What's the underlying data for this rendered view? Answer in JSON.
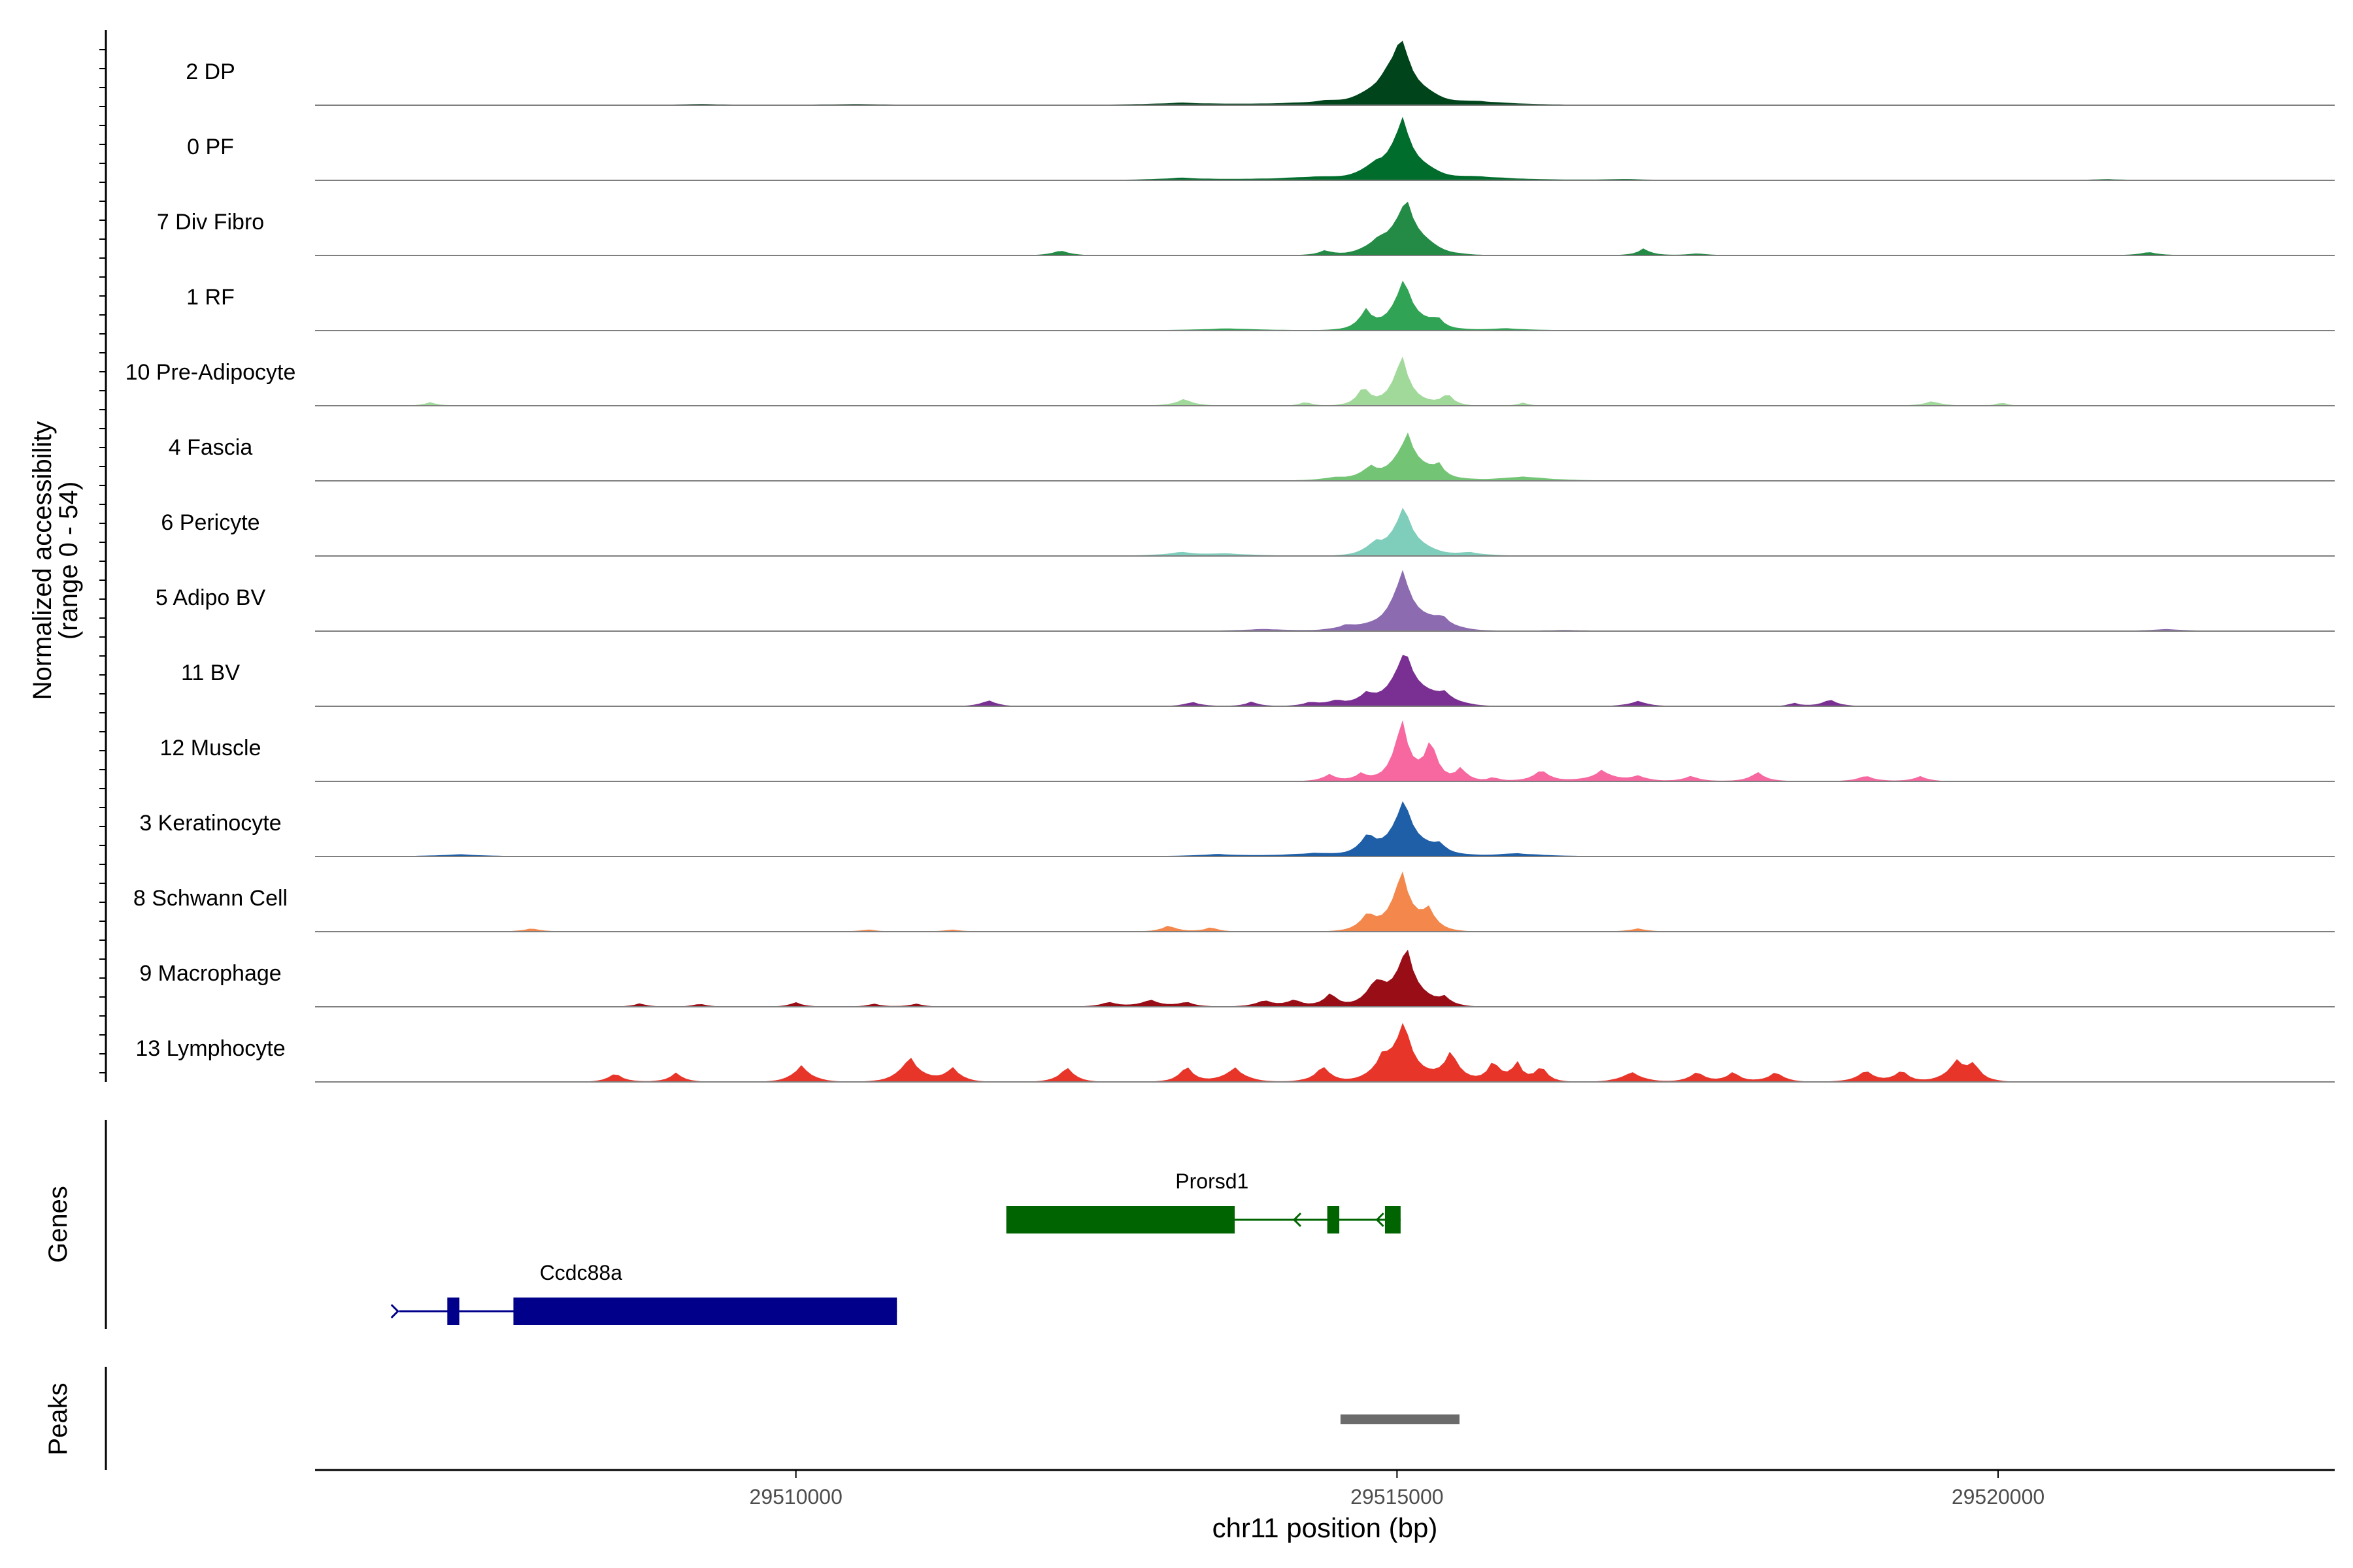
{
  "chart_data": {
    "type": "area",
    "title": "",
    "ylabel_line1": "Normalized accessibility",
    "ylabel_line2": "(range 0 - 54)",
    "xlabel": "chr11 position (bp)",
    "xlim": [
      29506000,
      29522800
    ],
    "ylim": [
      0,
      54
    ],
    "x_ticks": [
      29510000,
      29515000,
      29520000
    ],
    "x_tick_labels": [
      "29510000",
      "29515000",
      "29520000"
    ],
    "genes_label": "Genes",
    "peaks_label": "Peaks",
    "tracks": [
      {
        "name": "2 DP",
        "color": "#00441b",
        "peaks": [
          [
            29515040,
            54,
            140
          ],
          [
            29514900,
            12,
            160
          ],
          [
            29514400,
            3,
            500
          ],
          [
            29515700,
            3,
            400
          ],
          [
            29513200,
            2,
            400
          ],
          [
            29510500,
            1,
            600
          ],
          [
            29509200,
            1,
            300
          ]
        ]
      },
      {
        "name": "0 PF",
        "color": "#006d2c",
        "peaks": [
          [
            29515050,
            52,
            140
          ],
          [
            29514820,
            8,
            120
          ],
          [
            29514300,
            3,
            500
          ],
          [
            29515700,
            3,
            400
          ],
          [
            29513200,
            2,
            300
          ],
          [
            29516900,
            1,
            300
          ],
          [
            29520900,
            1,
            300
          ]
        ]
      },
      {
        "name": "7 Div Fibro",
        "color": "#238b45",
        "peaks": [
          [
            29515080,
            50,
            140
          ],
          [
            29514850,
            10,
            110
          ],
          [
            29512200,
            5,
            90
          ],
          [
            29514400,
            4,
            90
          ],
          [
            29517050,
            6,
            80
          ],
          [
            29517500,
            2,
            120
          ],
          [
            29521250,
            3,
            120
          ]
        ]
      },
      {
        "name": "1 RF",
        "color": "#31a354",
        "peaks": [
          [
            29515060,
            46,
            120
          ],
          [
            29514740,
            16,
            80
          ],
          [
            29515340,
            8,
            70
          ],
          [
            29513600,
            2,
            400
          ],
          [
            29515900,
            2,
            300
          ]
        ]
      },
      {
        "name": "10 Pre-Adipocyte",
        "color": "#a1d99b",
        "peaks": [
          [
            29515040,
            44,
            100
          ],
          [
            29514720,
            16,
            70
          ],
          [
            29515420,
            12,
            60
          ],
          [
            29513230,
            6,
            100
          ],
          [
            29514240,
            4,
            60
          ],
          [
            29516050,
            3,
            60
          ],
          [
            29519450,
            4,
            100
          ],
          [
            29520030,
            3,
            60
          ],
          [
            29506960,
            3,
            80
          ]
        ]
      },
      {
        "name": "4 Fascia",
        "color": "#74c476",
        "peaks": [
          [
            29515090,
            42,
            130
          ],
          [
            29514780,
            10,
            90
          ],
          [
            29515350,
            10,
            70
          ],
          [
            29516050,
            4,
            300
          ],
          [
            29514500,
            3,
            200
          ]
        ]
      },
      {
        "name": "6 Pericyte",
        "color": "#7fcdbb",
        "peaks": [
          [
            29515060,
            44,
            120
          ],
          [
            29514820,
            10,
            90
          ],
          [
            29513200,
            3,
            200
          ],
          [
            29515600,
            3,
            200
          ],
          [
            29513600,
            2,
            300
          ]
        ]
      },
      {
        "name": "5 Adipo BV",
        "color": "#8c6bb1",
        "peaks": [
          [
            29515050,
            52,
            140
          ],
          [
            29515380,
            10,
            100
          ],
          [
            29514580,
            5,
            100
          ],
          [
            29513900,
            2,
            300
          ],
          [
            29516400,
            1,
            400
          ],
          [
            29521400,
            2,
            200
          ]
        ]
      },
      {
        "name": "11 BV",
        "color": "#7a3093",
        "peaks": [
          [
            29515070,
            50,
            140
          ],
          [
            29515400,
            10,
            100
          ],
          [
            29514750,
            8,
            90
          ],
          [
            29514500,
            5,
            100
          ],
          [
            29511600,
            6,
            80
          ],
          [
            29513300,
            4,
            90
          ],
          [
            29513790,
            4,
            80
          ],
          [
            29514280,
            4,
            80
          ],
          [
            29517000,
            5,
            100
          ],
          [
            29518600,
            6,
            90
          ],
          [
            29518300,
            3,
            60
          ]
        ]
      },
      {
        "name": "12 Muscle",
        "color": "#f768a1",
        "peaks": [
          [
            29515040,
            54,
            90
          ],
          [
            29515280,
            35,
            70
          ],
          [
            29515530,
            12,
            70
          ],
          [
            29514440,
            6,
            90
          ],
          [
            29514700,
            6,
            80
          ],
          [
            29515800,
            4,
            60
          ],
          [
            29516200,
            10,
            100
          ],
          [
            29516700,
            10,
            110
          ],
          [
            29517000,
            5,
            100
          ],
          [
            29517450,
            5,
            90
          ],
          [
            29518000,
            8,
            90
          ],
          [
            29518900,
            5,
            100
          ],
          [
            29519350,
            5,
            80
          ]
        ]
      },
      {
        "name": "3 Keratinocyte",
        "color": "#1f5fa8",
        "peaks": [
          [
            29515060,
            50,
            130
          ],
          [
            29514760,
            16,
            90
          ],
          [
            29515360,
            8,
            80
          ],
          [
            29514300,
            3,
            300
          ],
          [
            29516000,
            3,
            300
          ],
          [
            29507200,
            2,
            300
          ],
          [
            29513500,
            2,
            300
          ]
        ]
      },
      {
        "name": "8 Schwann Cell",
        "color": "#f4874b",
        "peaks": [
          [
            29515040,
            52,
            110
          ],
          [
            29515260,
            16,
            80
          ],
          [
            29514760,
            14,
            90
          ],
          [
            29513100,
            6,
            80
          ],
          [
            29513450,
            4,
            80
          ],
          [
            29517000,
            3,
            100
          ],
          [
            29507800,
            3,
            100
          ],
          [
            29510600,
            2,
            100
          ],
          [
            29511300,
            2,
            100
          ]
        ]
      },
      {
        "name": "9 Macrophage",
        "color": "#990d17",
        "peaks": [
          [
            29515080,
            54,
            110
          ],
          [
            29514850,
            16,
            80
          ],
          [
            29515400,
            8,
            70
          ],
          [
            29514450,
            12,
            80
          ],
          [
            29514800,
            10,
            90
          ],
          [
            29513900,
            6,
            100
          ],
          [
            29514150,
            6,
            90
          ],
          [
            29512600,
            4,
            100
          ],
          [
            29512950,
            6,
            120
          ],
          [
            29513250,
            4,
            90
          ],
          [
            29508700,
            3,
            80
          ],
          [
            29509200,
            3,
            80
          ],
          [
            29510000,
            4,
            80
          ],
          [
            29510650,
            3,
            80
          ],
          [
            29511000,
            3,
            80
          ]
        ]
      },
      {
        "name": "13 Lymphocyte",
        "color": "#e8352a",
        "peaks": [
          [
            29515060,
            52,
            110
          ],
          [
            29514880,
            20,
            90
          ],
          [
            29515450,
            30,
            80
          ],
          [
            29515800,
            20,
            70
          ],
          [
            29516000,
            18,
            60
          ],
          [
            29516200,
            14,
            70
          ],
          [
            29514380,
            14,
            90
          ],
          [
            29513650,
            14,
            100
          ],
          [
            29513250,
            14,
            80
          ],
          [
            29512250,
            14,
            80
          ],
          [
            29511300,
            14,
            80
          ],
          [
            29510950,
            24,
            100
          ],
          [
            29510050,
            16,
            90
          ],
          [
            29509000,
            8,
            80
          ],
          [
            29508500,
            8,
            80
          ],
          [
            29516950,
            10,
            100
          ],
          [
            29517500,
            10,
            80
          ],
          [
            29517800,
            10,
            70
          ],
          [
            29518150,
            10,
            80
          ],
          [
            29518900,
            10,
            100
          ],
          [
            29519200,
            10,
            80
          ],
          [
            29519650,
            20,
            90
          ],
          [
            29519800,
            14,
            80
          ]
        ]
      }
    ],
    "genes": [
      {
        "name": "Prorsd1",
        "color": "#006400",
        "strand": "-",
        "start": 29511750,
        "end": 29515030,
        "exons": [
          [
            29511750,
            29513650
          ],
          [
            29514420,
            29514520
          ],
          [
            29514900,
            29515030
          ]
        ]
      },
      {
        "name": "Ccdc88a",
        "color": "#00008b",
        "strand": "+",
        "start": 29506700,
        "end": 29510840,
        "exons": [
          [
            29507100,
            29507200
          ],
          [
            29507650,
            29510840
          ]
        ]
      }
    ],
    "peak_regions": [
      [
        29514530,
        29515520
      ]
    ]
  }
}
